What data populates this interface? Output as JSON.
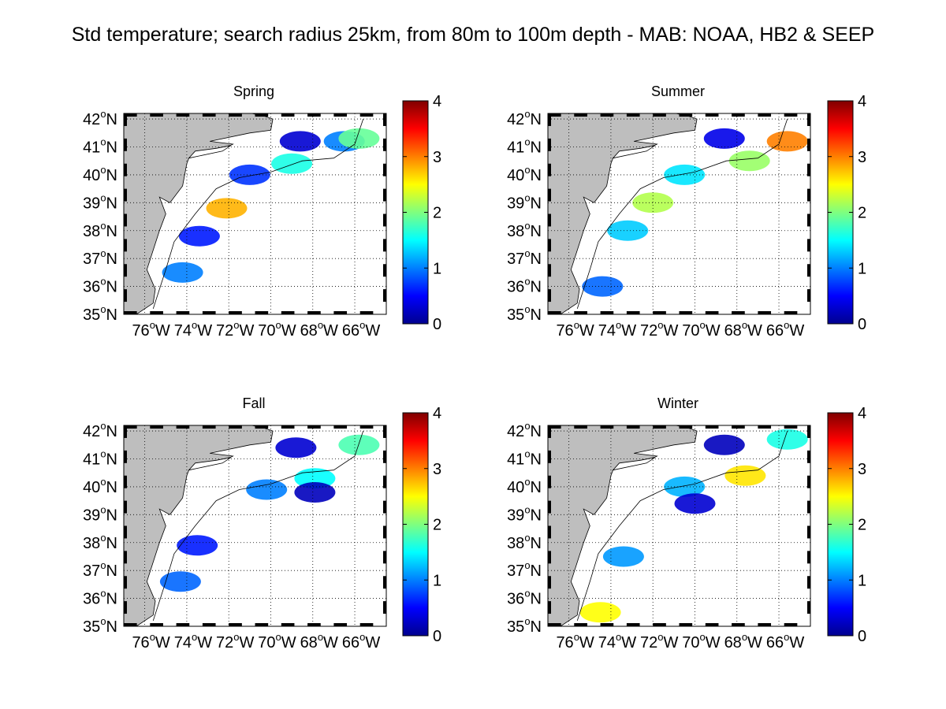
{
  "title": "Std temperature; search radius 25km, from 80m to 100m depth - MAB: NOAA, HB2 & SEEP",
  "lat_ticks": [
    {
      "deg": "42",
      "sup": "o",
      "hem": "N",
      "value": 42
    },
    {
      "deg": "41",
      "sup": "o",
      "hem": "N",
      "value": 41
    },
    {
      "deg": "40",
      "sup": "o",
      "hem": "N",
      "value": 40
    },
    {
      "deg": "39",
      "sup": "o",
      "hem": "N",
      "value": 39
    },
    {
      "deg": "38",
      "sup": "o",
      "hem": "N",
      "value": 38
    },
    {
      "deg": "37",
      "sup": "o",
      "hem": "N",
      "value": 37
    },
    {
      "deg": "36",
      "sup": "o",
      "hem": "N",
      "value": 36
    },
    {
      "deg": "35",
      "sup": "o",
      "hem": "N",
      "value": 35
    }
  ],
  "lon_ticks": [
    {
      "deg": "76",
      "sup": "o",
      "hem": "W",
      "value": -76
    },
    {
      "deg": "74",
      "sup": "o",
      "hem": "W",
      "value": -74
    },
    {
      "deg": "72",
      "sup": "o",
      "hem": "W",
      "value": -72
    },
    {
      "deg": "70",
      "sup": "o",
      "hem": "W",
      "value": -70
    },
    {
      "deg": "68",
      "sup": "o",
      "hem": "W",
      "value": -68
    },
    {
      "deg": "66",
      "sup": "o",
      "hem": "W",
      "value": -66
    }
  ],
  "lon_range": [
    -77.0,
    -64.5
  ],
  "lat_range": [
    35.0,
    42.2
  ],
  "colorbar": {
    "ticks": [
      "0",
      "1",
      "2",
      "3",
      "4"
    ],
    "range": [
      0,
      4
    ],
    "colormap": "jet",
    "colors": [
      "#00008f",
      "#0000ff",
      "#007fff",
      "#00ffff",
      "#7fff7f",
      "#ffff00",
      "#ff7f00",
      "#ff0000",
      "#800000"
    ]
  },
  "colors": {
    "land": "#bebebe",
    "frame": "#000000",
    "grid": "#000000",
    "background": "#ffffff"
  },
  "panels": [
    {
      "season": "Spring",
      "patches": [
        {
          "lon": -68.6,
          "lat": 41.2,
          "v": 0.3
        },
        {
          "lon": -66.5,
          "lat": 41.2,
          "v": 1.0
        },
        {
          "lon": -71.0,
          "lat": 40.0,
          "v": 0.7
        },
        {
          "lon": -69.0,
          "lat": 40.4,
          "v": 1.6
        },
        {
          "lon": -73.4,
          "lat": 37.8,
          "v": 0.6
        },
        {
          "lon": -74.2,
          "lat": 36.5,
          "v": 1.0
        },
        {
          "lon": -72.1,
          "lat": 38.8,
          "v": 2.8
        },
        {
          "lon": -65.8,
          "lat": 41.3,
          "v": 1.9
        }
      ]
    },
    {
      "season": "Summer",
      "patches": [
        {
          "lon": -68.6,
          "lat": 41.3,
          "v": 0.4
        },
        {
          "lon": -65.6,
          "lat": 41.2,
          "v": 3.0
        },
        {
          "lon": -70.5,
          "lat": 40.0,
          "v": 1.4
        },
        {
          "lon": -67.4,
          "lat": 40.5,
          "v": 2.1
        },
        {
          "lon": -73.2,
          "lat": 38.0,
          "v": 1.3
        },
        {
          "lon": -74.4,
          "lat": 36.0,
          "v": 0.9
        },
        {
          "lon": -72.0,
          "lat": 39.0,
          "v": 2.2
        }
      ]
    },
    {
      "season": "Fall",
      "patches": [
        {
          "lon": -68.8,
          "lat": 41.4,
          "v": 0.3
        },
        {
          "lon": -65.8,
          "lat": 41.5,
          "v": 1.8
        },
        {
          "lon": -70.2,
          "lat": 39.9,
          "v": 1.0
        },
        {
          "lon": -67.9,
          "lat": 40.3,
          "v": 1.5
        },
        {
          "lon": -73.5,
          "lat": 37.9,
          "v": 0.6
        },
        {
          "lon": -74.3,
          "lat": 36.6,
          "v": 0.9
        },
        {
          "lon": -67.9,
          "lat": 39.8,
          "v": 0.2
        }
      ]
    },
    {
      "season": "Winter",
      "patches": [
        {
          "lon": -68.6,
          "lat": 41.5,
          "v": 0.2
        },
        {
          "lon": -65.6,
          "lat": 41.7,
          "v": 1.6
        },
        {
          "lon": -70.5,
          "lat": 40.0,
          "v": 1.2
        },
        {
          "lon": -67.6,
          "lat": 40.4,
          "v": 2.6
        },
        {
          "lon": -73.4,
          "lat": 37.5,
          "v": 1.1
        },
        {
          "lon": -74.5,
          "lat": 35.5,
          "v": 2.5
        },
        {
          "lon": -70.0,
          "lat": 39.4,
          "v": 0.3
        }
      ]
    }
  ]
}
